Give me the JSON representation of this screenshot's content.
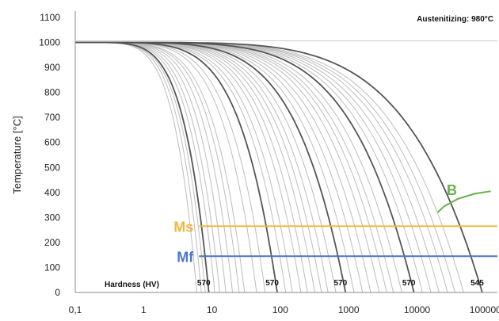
{
  "chart_data": {
    "type": "line",
    "title": "",
    "annotation": "Austenitizing: 980°C",
    "xlabel": "",
    "ylabel": "Temperature [°C]",
    "x_scale": "log",
    "xlim": [
      0.1,
      150000
    ],
    "ylim": [
      0,
      1100
    ],
    "x_tick_labels": [
      "0,1",
      "1",
      "10",
      "100",
      "1000",
      "10000",
      "100000"
    ],
    "x_tick_values": [
      0.1,
      1,
      10,
      100,
      1000,
      10000,
      100000
    ],
    "y_ticks": [
      0,
      100,
      200,
      300,
      400,
      500,
      600,
      700,
      800,
      900,
      1000,
      1100
    ],
    "grid": false,
    "start_temperature": 1000,
    "dark_curves_reach_zero_at": [
      9,
      90,
      900,
      9000,
      90000
    ],
    "light_curves_reach_zero_at": [
      6,
      7,
      8,
      11,
      13,
      16,
      20,
      25,
      30,
      45,
      60,
      120,
      150,
      200,
      250,
      320,
      400,
      500,
      650,
      1200,
      1600,
      2100,
      2800,
      3600,
      4500,
      6000,
      12000,
      16000,
      21000,
      28000,
      36000,
      48000
    ],
    "hardness_label": "Hardness (HV)",
    "hardness_values": [
      {
        "x": 10,
        "text": "570"
      },
      {
        "x": 100,
        "text": "570"
      },
      {
        "x": 1000,
        "text": "570"
      },
      {
        "x": 10000,
        "text": "570"
      },
      {
        "x": 100000,
        "text": "545"
      }
    ],
    "phase_lines": [
      {
        "label": "Ms",
        "y": 265,
        "x_start": 7,
        "x_end": 150000,
        "color": "#f2b63c"
      },
      {
        "label": "Mf",
        "y": 145,
        "x_start": 7,
        "x_end": 150000,
        "color": "#4a78c2"
      }
    ],
    "bainite": {
      "label": "B",
      "color": "#6ab04c",
      "points": [
        [
          20000,
          320
        ],
        [
          25000,
          345
        ],
        [
          40000,
          375
        ],
        [
          70000,
          395
        ],
        [
          120000,
          405
        ]
      ]
    }
  }
}
